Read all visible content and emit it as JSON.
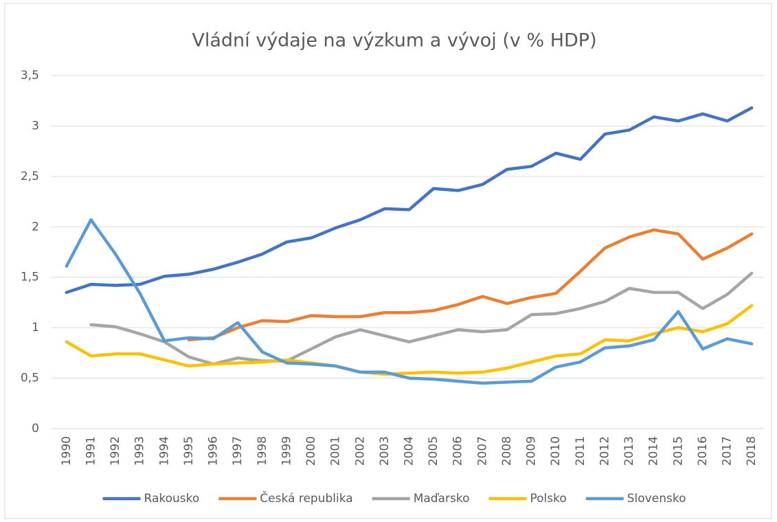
{
  "chart_data": {
    "type": "line",
    "title": "Vládní výdaje na výzkum a vývoj (v % HDP)",
    "categories": [
      "1990",
      "1991",
      "1992",
      "1993",
      "1994",
      "1995",
      "1996",
      "1997",
      "1998",
      "1999",
      "2000",
      "2001",
      "2002",
      "2003",
      "2004",
      "2005",
      "2006",
      "2007",
      "2008",
      "2009",
      "2010",
      "2011",
      "2012",
      "2013",
      "2014",
      "2015",
      "2016",
      "2017",
      "2018"
    ],
    "series": [
      {
        "name": "Rakousko",
        "color": "#4472c4",
        "values": [
          1.35,
          1.43,
          1.42,
          1.43,
          1.51,
          1.53,
          1.58,
          1.65,
          1.73,
          1.85,
          1.89,
          1.99,
          2.07,
          2.18,
          2.17,
          2.38,
          2.36,
          2.42,
          2.57,
          2.6,
          2.73,
          2.67,
          2.92,
          2.96,
          3.09,
          3.05,
          3.12,
          3.05,
          3.18
        ]
      },
      {
        "name": "Česká republika",
        "color": "#ed7d31",
        "values": [
          null,
          null,
          null,
          null,
          null,
          0.88,
          0.9,
          1.0,
          1.07,
          1.06,
          1.12,
          1.11,
          1.11,
          1.15,
          1.15,
          1.17,
          1.23,
          1.31,
          1.24,
          1.3,
          1.34,
          1.56,
          1.79,
          1.9,
          1.97,
          1.93,
          1.68,
          1.79,
          1.93
        ]
      },
      {
        "name": "Maďarsko",
        "color": "#a5a5a5",
        "values": [
          null,
          1.03,
          1.01,
          0.94,
          0.86,
          0.71,
          0.64,
          0.7,
          0.67,
          0.67,
          0.79,
          0.91,
          0.98,
          0.92,
          0.86,
          0.92,
          0.98,
          0.96,
          0.98,
          1.13,
          1.14,
          1.19,
          1.26,
          1.39,
          1.35,
          1.35,
          1.19,
          1.33,
          1.54
        ]
      },
      {
        "name": "Polsko",
        "color": "#ffc000",
        "values": [
          0.86,
          0.72,
          0.74,
          0.74,
          0.68,
          0.62,
          0.64,
          0.65,
          0.66,
          0.68,
          0.65,
          0.62,
          0.56,
          0.54,
          0.55,
          0.56,
          0.55,
          0.56,
          0.6,
          0.66,
          0.72,
          0.74,
          0.88,
          0.87,
          0.94,
          1.0,
          0.96,
          1.04,
          1.22
        ]
      },
      {
        "name": "Slovensko",
        "color": "#5b9bd5",
        "values": [
          1.61,
          2.07,
          1.73,
          1.34,
          0.87,
          0.9,
          0.89,
          1.05,
          0.76,
          0.65,
          0.64,
          0.62,
          0.56,
          0.56,
          0.5,
          0.49,
          0.47,
          0.45,
          0.46,
          0.47,
          0.61,
          0.66,
          0.8,
          0.82,
          0.88,
          1.16,
          0.79,
          0.89,
          0.84
        ]
      }
    ],
    "ylim": [
      0,
      3.5
    ],
    "yticks": [
      0,
      {
        "value": 0.5,
        "label": "0,5"
      },
      1,
      {
        "value": 1.5,
        "label": "1,5"
      },
      2,
      {
        "value": 2.5,
        "label": "2,5"
      },
      3,
      {
        "value": 3.5,
        "label": "3,5"
      }
    ],
    "grid": true,
    "legend": "bottom"
  }
}
